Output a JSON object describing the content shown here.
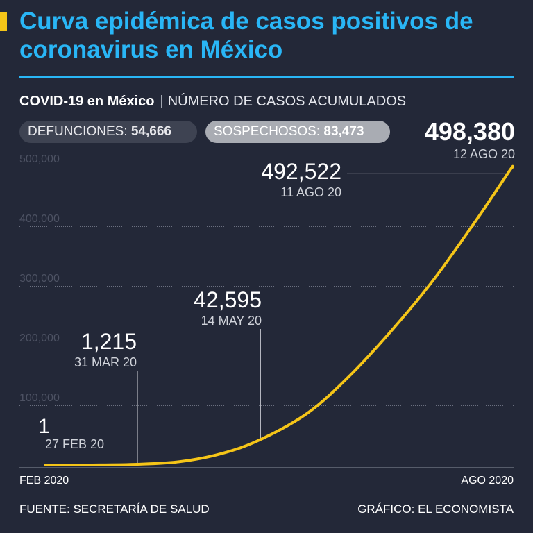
{
  "header": {
    "title": "Curva epidémica de casos positivos de coronavirus en México",
    "subtitle_bold": "COVID-19 en México",
    "subtitle_sep": "|",
    "subtitle_light": "NÚMERO DE CASOS ACUMULADOS"
  },
  "stats": {
    "defunciones_label": "DEFUNCIONES:",
    "defunciones_value": "54,666",
    "sospechosos_label": "SOSPECHOSOS:",
    "sospechosos_value": "83,473",
    "total_value": "498,380",
    "total_date": "12 AGO 20"
  },
  "colors": {
    "background": "#232838",
    "title": "#29b6f6",
    "line": "#f5c518",
    "grid": "#6b7080"
  },
  "chart_data": {
    "type": "line",
    "title": "",
    "xlabel": "",
    "ylabel": "",
    "x_start_label": "FEB 2020",
    "x_end_label": "AGO 2020",
    "ylim": [
      0,
      500000
    ],
    "yticks": [
      100000,
      200000,
      300000,
      400000,
      500000
    ],
    "ytick_labels": [
      "100,000",
      "200,000",
      "300,000",
      "400,000",
      "500,000"
    ],
    "grid": true,
    "series": [
      {
        "x": [
          "2020-02-27",
          "2020-03-15",
          "2020-03-31",
          "2020-04-15",
          "2020-04-30",
          "2020-05-14",
          "2020-05-31",
          "2020-06-15",
          "2020-06-30",
          "2020-07-15",
          "2020-07-31",
          "2020-08-11",
          "2020-08-12"
        ],
        "values": [
          1,
          40,
          1215,
          5500,
          19000,
          42595,
          87500,
          150000,
          226000,
          311000,
          416000,
          492522,
          498380
        ]
      }
    ],
    "annotations": [
      {
        "date": "2020-02-27",
        "value_label": "1",
        "date_label": "27 FEB 20"
      },
      {
        "date": "2020-03-31",
        "value_label": "1,215",
        "date_label": "31 MAR 20"
      },
      {
        "date": "2020-05-14",
        "value_label": "42,595",
        "date_label": "14 MAY 20"
      },
      {
        "date": "2020-08-11",
        "value_label": "492,522",
        "date_label": "11 AGO 20"
      }
    ]
  },
  "footer": {
    "source": "FUENTE: SECRETARÍA DE SALUD",
    "credit": "GRÁFICO: EL ECONOMISTA"
  }
}
